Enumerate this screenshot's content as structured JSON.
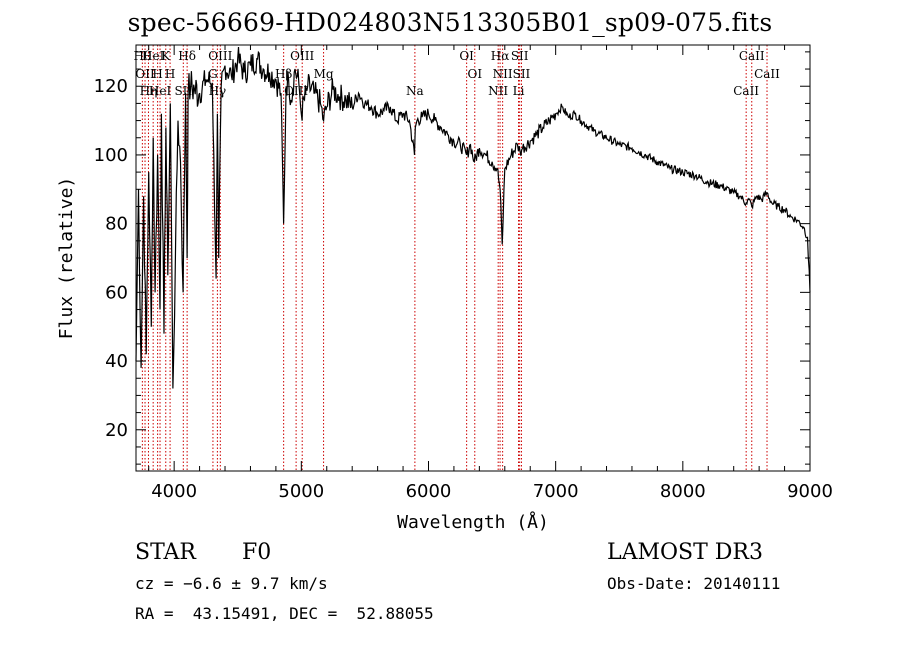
{
  "chart_data": {
    "type": "line",
    "title": "spec-56669-HD024803N513305B01_sp09-075.fits",
    "xlabel": "Wavelength (Å)",
    "ylabel": "Flux (relative)",
    "xlim": [
      3700,
      9000
    ],
    "ylim": [
      8,
      132
    ],
    "xticks": [
      4000,
      5000,
      6000,
      7000,
      8000,
      9000
    ],
    "yticks": [
      20,
      40,
      60,
      80,
      100,
      120
    ],
    "grid": false,
    "line_color": "#000000",
    "marker_color": "#cc0000",
    "series": [
      {
        "x": [
          3700,
          3720,
          3740,
          3760,
          3780,
          3800,
          3820,
          3835,
          3850,
          3870,
          3889,
          3900,
          3920,
          3935,
          3950,
          3970,
          3990,
          4010,
          4030,
          4050,
          4070,
          4090,
          4102,
          4110,
          4130,
          4160,
          4200,
          4250,
          4300,
          4330,
          4340,
          4350,
          4370,
          4400,
          4450,
          4500,
          4550,
          4600,
          4650,
          4700,
          4750,
          4800,
          4840,
          4861,
          4880,
          4900,
          4920,
          4950,
          4980,
          5000,
          5050,
          5100,
          5150,
          5175,
          5200,
          5250,
          5300,
          5350,
          5400,
          5450,
          5500,
          5550,
          5600,
          5650,
          5700,
          5750,
          5800,
          5850,
          5890,
          5896,
          5910,
          5950,
          6000,
          6050,
          6100,
          6150,
          6200,
          6250,
          6300,
          6330,
          6360,
          6400,
          6450,
          6500,
          6540,
          6563,
          6580,
          6600,
          6650,
          6700,
          6720,
          6740,
          6800,
          6850,
          6900,
          6950,
          7000,
          7050,
          7100,
          7150,
          7200,
          7300,
          7400,
          7500,
          7600,
          7700,
          7800,
          7900,
          8000,
          8100,
          8200,
          8300,
          8400,
          8450,
          8498,
          8520,
          8542,
          8580,
          8620,
          8662,
          8700,
          8750,
          8800,
          8850,
          8900,
          8950,
          8980,
          9000
        ],
        "y": [
          40,
          90,
          38,
          88,
          42,
          95,
          50,
          105,
          60,
          100,
          55,
          112,
          48,
          108,
          65,
          115,
          32,
          70,
          110,
          98,
          60,
          118,
          70,
          118,
          120,
          119,
          118,
          122,
          121,
          64,
          112,
          70,
          120,
          126,
          123,
          128,
          124,
          126,
          128,
          125,
          124,
          122,
          118,
          80,
          120,
          122,
          116,
          125,
          121,
          112,
          120,
          118,
          115,
          110,
          114,
          119,
          117,
          116,
          114,
          118,
          115,
          114,
          112,
          113,
          114,
          110,
          112,
          110,
          100,
          108,
          110,
          111,
          112,
          110,
          108,
          106,
          104,
          103,
          100,
          103,
          98,
          102,
          100,
          98,
          96,
          90,
          74,
          96,
          100,
          103,
          101,
          102,
          104,
          106,
          108,
          110,
          112,
          114,
          111,
          112,
          110,
          107,
          105,
          103,
          102,
          100,
          98,
          96,
          95,
          94,
          92,
          91,
          89,
          88,
          86,
          87,
          85,
          88,
          87,
          89,
          86,
          85,
          84,
          82,
          81,
          79,
          76,
          60
        ]
      }
    ],
    "line_markers": [
      {
        "x": 3750,
        "label": "Hθ"
      },
      {
        "x": 3771,
        "label": "OII"
      },
      {
        "x": 3798,
        "label": "Hη"
      },
      {
        "x": 3835,
        "label": "HeI"
      },
      {
        "x": 3870,
        "label": "H"
      },
      {
        "x": 3889,
        "label": "HeI"
      },
      {
        "x": 3934,
        "label": "K"
      },
      {
        "x": 3968,
        "label": "H"
      },
      {
        "x": 4072,
        "label": "SII"
      },
      {
        "x": 4102,
        "label": "Hδ"
      },
      {
        "x": 4305,
        "label": "G"
      },
      {
        "x": 4340,
        "label": "Hγ"
      },
      {
        "x": 4363,
        "label": "OIII"
      },
      {
        "x": 4861,
        "label": "Hβ"
      },
      {
        "x": 4959,
        "label": "OIII"
      },
      {
        "x": 5007,
        "label": "OIII"
      },
      {
        "x": 5175,
        "label": "Mg"
      },
      {
        "x": 5893,
        "label": "Na"
      },
      {
        "x": 6300,
        "label": "OI"
      },
      {
        "x": 6364,
        "label": "OI"
      },
      {
        "x": 6548,
        "label": "NII"
      },
      {
        "x": 6563,
        "label": "Hα"
      },
      {
        "x": 6583,
        "label": "NII"
      },
      {
        "x": 6708,
        "label": "Li"
      },
      {
        "x": 6717,
        "label": "SII"
      },
      {
        "x": 6731,
        "label": "SII"
      },
      {
        "x": 8498,
        "label": "CaII"
      },
      {
        "x": 8542,
        "label": "CaII"
      },
      {
        "x": 8662,
        "label": "CaII"
      }
    ]
  },
  "info": {
    "class_label": "STAR",
    "subclass": "F0",
    "survey": "LAMOST DR3",
    "redshift": "cz = −6.6 ± 9.7 km/s",
    "obs_date": "Obs-Date: 20140111",
    "coords": "RA =  43.15491, DEC =  52.88055"
  }
}
